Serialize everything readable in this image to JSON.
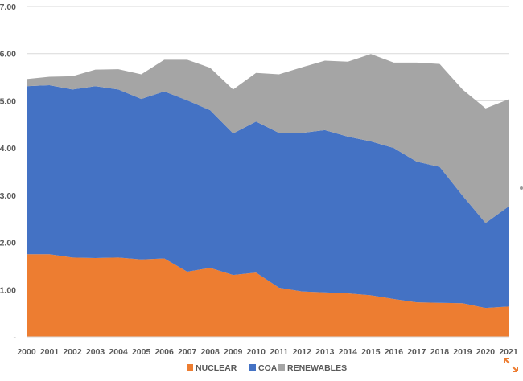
{
  "chart_data": {
    "type": "area",
    "stacked": true,
    "title": "",
    "xlabel": "",
    "ylabel": "",
    "ylim": [
      0,
      7
    ],
    "yticks": [
      {
        "value": 0,
        "label": "-"
      },
      {
        "value": 1,
        "label": "1.00"
      },
      {
        "value": 2,
        "label": "2.00"
      },
      {
        "value": 3,
        "label": "3.00"
      },
      {
        "value": 4,
        "label": "4.00"
      },
      {
        "value": 5,
        "label": "5.00"
      },
      {
        "value": 6,
        "label": "6.00"
      },
      {
        "value": 7,
        "label": "7.00"
      }
    ],
    "categories": [
      "2000",
      "2001",
      "2002",
      "2003",
      "2004",
      "2005",
      "2006",
      "2007",
      "2008",
      "2009",
      "2010",
      "2011",
      "2012",
      "2013",
      "2014",
      "2015",
      "2016",
      "2017",
      "2018",
      "2019",
      "2020",
      "2021"
    ],
    "series": [
      {
        "name": "NUCLEAR",
        "color": "#ED7D31",
        "values": [
          1.75,
          1.75,
          1.68,
          1.67,
          1.68,
          1.64,
          1.66,
          1.38,
          1.46,
          1.31,
          1.36,
          1.04,
          0.96,
          0.94,
          0.92,
          0.88,
          0.8,
          0.73,
          0.72,
          0.71,
          0.61,
          0.64
        ]
      },
      {
        "name": "COAL",
        "color": "#4472C4",
        "values": [
          3.56,
          3.58,
          3.56,
          3.64,
          3.56,
          3.4,
          3.54,
          3.63,
          3.34,
          3.0,
          3.2,
          3.28,
          3.36,
          3.44,
          3.32,
          3.26,
          3.2,
          2.98,
          2.88,
          2.28,
          1.8,
          2.12
        ]
      },
      {
        "name": "RENEWABLES",
        "color": "#A5A5A5",
        "values": [
          0.15,
          0.18,
          0.28,
          0.35,
          0.43,
          0.52,
          0.67,
          0.86,
          0.9,
          0.93,
          1.03,
          1.24,
          1.39,
          1.47,
          1.59,
          1.85,
          1.81,
          2.1,
          2.18,
          2.25,
          2.43,
          2.27
        ]
      }
    ],
    "grid": true,
    "legend_position": "bottom"
  }
}
